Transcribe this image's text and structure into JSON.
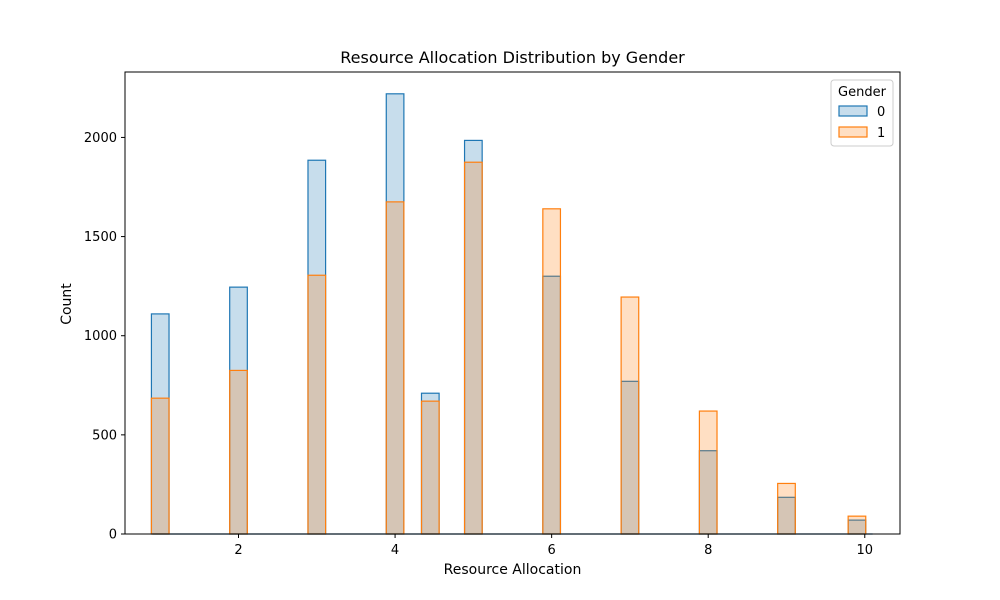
{
  "chart_data": {
    "type": "bar",
    "title": "Resource Allocation Distribution by Gender",
    "xlabel": "Resource Allocation",
    "ylabel": "Count",
    "xlim": [
      0.55,
      10.45
    ],
    "ylim": [
      0,
      2330
    ],
    "xticks": [
      2,
      4,
      6,
      8,
      10
    ],
    "yticks": [
      0,
      500,
      1000,
      1500,
      2000
    ],
    "bin_width": 0.225,
    "bin_centers": [
      1.0,
      2.0,
      3.0,
      4.0,
      4.45,
      5.0,
      6.0,
      7.0,
      8.0,
      9.0,
      9.9
    ],
    "series": [
      {
        "name": "0",
        "color": "#1f77b4",
        "values": [
          1110,
          1245,
          1885,
          2220,
          710,
          1985,
          1300,
          770,
          420,
          185,
          70
        ]
      },
      {
        "name": "1",
        "color": "#ff7f0e",
        "values": [
          685,
          825,
          1305,
          1675,
          670,
          1875,
          1640,
          1195,
          620,
          255,
          90
        ]
      }
    ],
    "legend": {
      "title": "Gender",
      "position": "top-right"
    },
    "grid": false
  }
}
